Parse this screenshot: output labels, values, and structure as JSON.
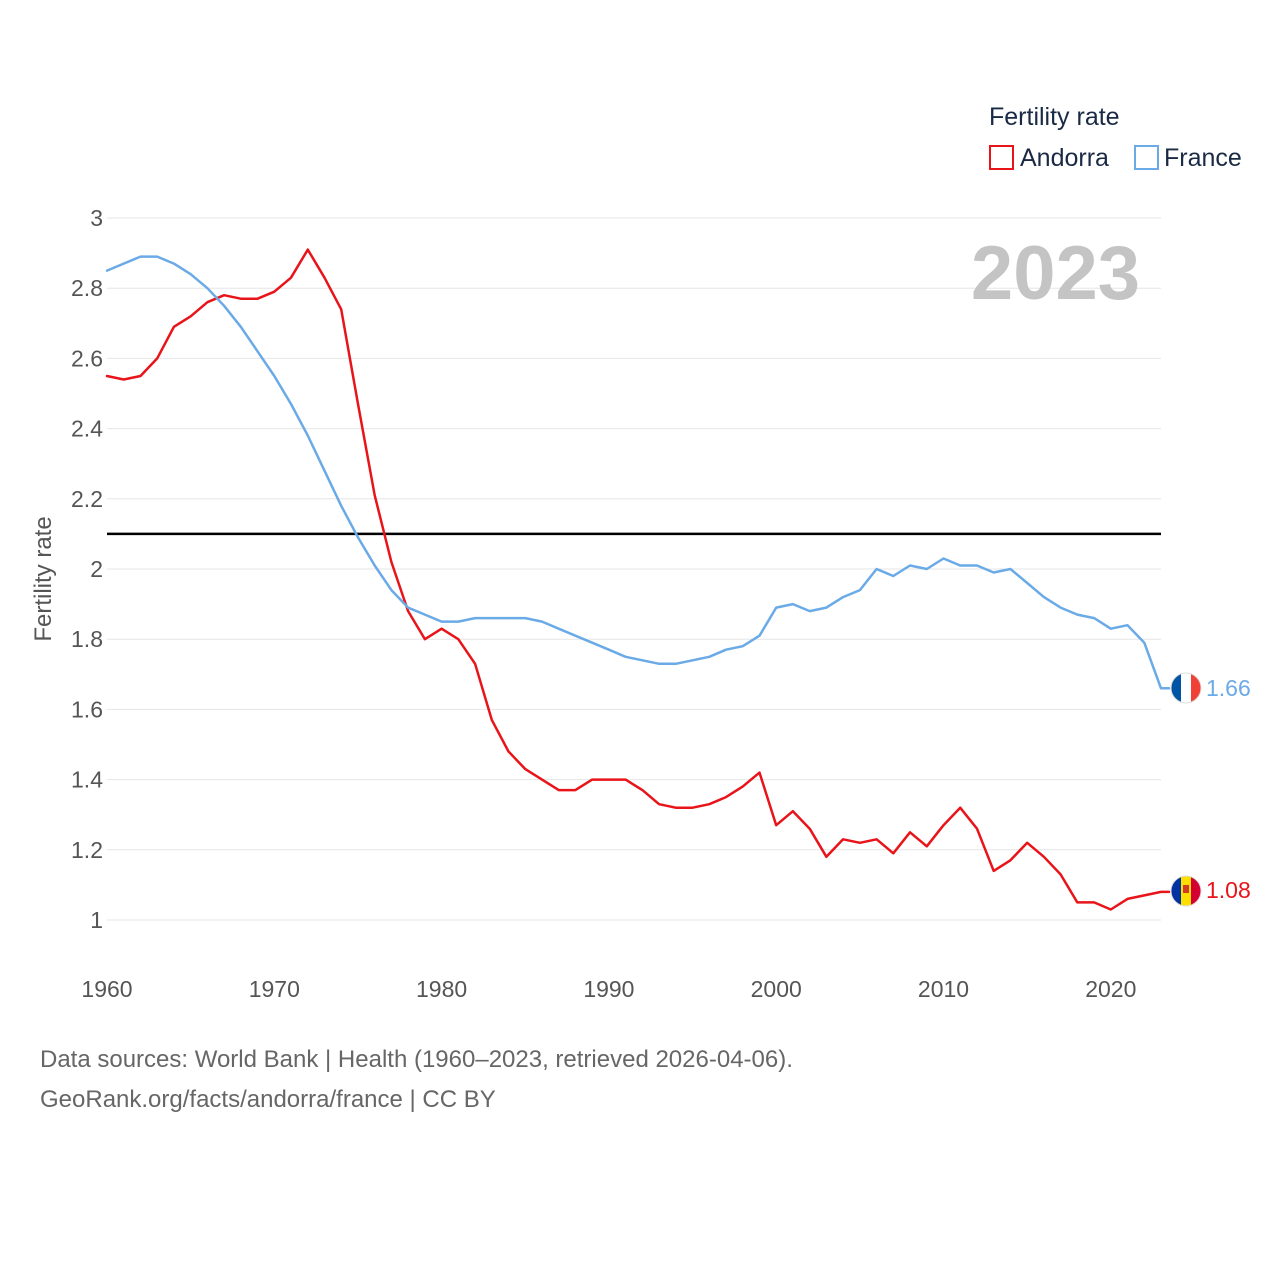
{
  "chart_data": {
    "type": "line",
    "title": "Fertility rate",
    "ylabel": "Fertility rate",
    "xlabel": "",
    "xlim": [
      1960,
      2023
    ],
    "ylim": [
      0.9,
      3.0
    ],
    "x_ticks": [
      1960,
      1970,
      1980,
      1990,
      2000,
      2010,
      2020
    ],
    "y_ticks": [
      1,
      1.2,
      1.4,
      1.6,
      1.8,
      2,
      2.2,
      2.4,
      2.6,
      2.8,
      3
    ],
    "reference_line": 2.1,
    "current_year": "2023",
    "x": [
      1960,
      1961,
      1962,
      1963,
      1964,
      1965,
      1966,
      1967,
      1968,
      1969,
      1970,
      1971,
      1972,
      1973,
      1974,
      1975,
      1976,
      1977,
      1978,
      1979,
      1980,
      1981,
      1982,
      1983,
      1984,
      1985,
      1986,
      1987,
      1988,
      1989,
      1990,
      1991,
      1992,
      1993,
      1994,
      1995,
      1996,
      1997,
      1998,
      1999,
      2000,
      2001,
      2002,
      2003,
      2004,
      2005,
      2006,
      2007,
      2008,
      2009,
      2010,
      2011,
      2012,
      2013,
      2014,
      2015,
      2016,
      2017,
      2018,
      2019,
      2020,
      2021,
      2022,
      2023
    ],
    "series": [
      {
        "name": "Andorra",
        "color": "#e8141a",
        "end_label": "1.08",
        "flag": "andorra-flag",
        "values": [
          2.55,
          2.54,
          2.55,
          2.6,
          2.69,
          2.72,
          2.76,
          2.78,
          2.77,
          2.77,
          2.79,
          2.83,
          2.91,
          2.83,
          2.74,
          2.47,
          2.21,
          2.02,
          1.88,
          1.8,
          1.83,
          1.8,
          1.73,
          1.57,
          1.48,
          1.43,
          1.4,
          1.37,
          1.37,
          1.4,
          1.4,
          1.4,
          1.37,
          1.33,
          1.32,
          1.32,
          1.33,
          1.35,
          1.38,
          1.42,
          1.27,
          1.31,
          1.26,
          1.18,
          1.23,
          1.22,
          1.23,
          1.19,
          1.25,
          1.21,
          1.27,
          1.32,
          1.26,
          1.14,
          1.17,
          1.22,
          1.18,
          1.13,
          1.05,
          1.05,
          1.03,
          1.06,
          1.07,
          1.08
        ]
      },
      {
        "name": "France",
        "color": "#6aaae6",
        "end_label": "1.66",
        "flag": "france-flag",
        "values": [
          2.85,
          2.87,
          2.89,
          2.89,
          2.87,
          2.84,
          2.8,
          2.75,
          2.69,
          2.62,
          2.55,
          2.47,
          2.38,
          2.28,
          2.18,
          2.09,
          2.01,
          1.94,
          1.89,
          1.87,
          1.85,
          1.85,
          1.86,
          1.86,
          1.86,
          1.86,
          1.85,
          1.83,
          1.81,
          1.79,
          1.77,
          1.75,
          1.74,
          1.73,
          1.73,
          1.74,
          1.75,
          1.77,
          1.78,
          1.81,
          1.89,
          1.9,
          1.88,
          1.89,
          1.92,
          1.94,
          2.0,
          1.98,
          2.01,
          2.0,
          2.03,
          2.01,
          2.01,
          1.99,
          2.0,
          1.96,
          1.92,
          1.89,
          1.87,
          1.86,
          1.83,
          1.84,
          1.79,
          1.66
        ]
      }
    ]
  },
  "legend": {
    "title": "Fertility rate",
    "items": [
      "Andorra",
      "France"
    ]
  },
  "footer": {
    "line1": "Data sources: World Bank | Health (1960–2023, retrieved 2026-04-06).",
    "line2": "GeoRank.org/facts/andorra/france | CC BY"
  },
  "colors": {
    "andorra_flag_blue": "#0033a0",
    "andorra_flag_yellow": "#fedf00",
    "andorra_flag_red": "#d50032",
    "france_flag_blue": "#0055a4",
    "france_flag_white": "#ffffff",
    "france_flag_red": "#ef4135"
  }
}
